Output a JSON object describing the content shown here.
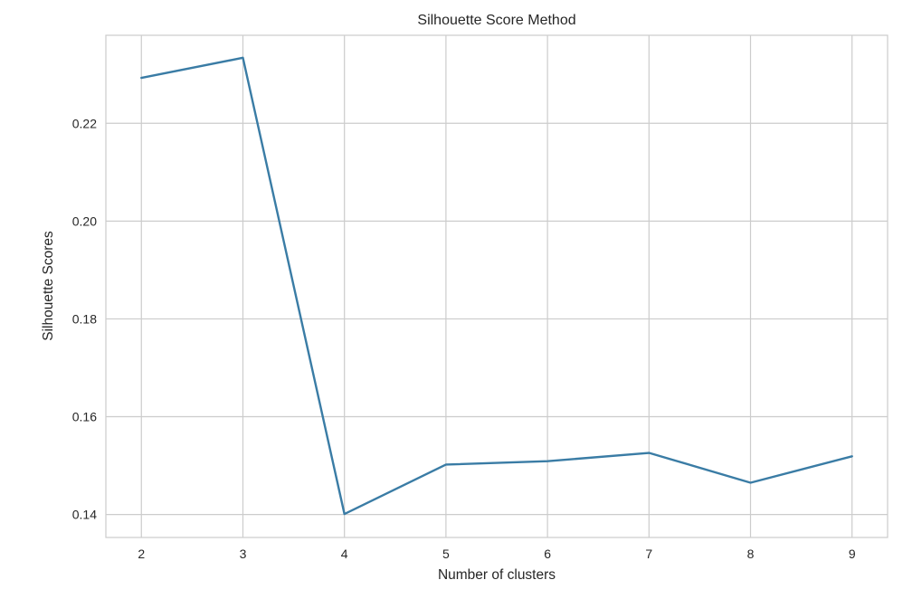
{
  "chart_data": {
    "type": "line",
    "title": "Silhouette Score Method",
    "xlabel": "Number of clusters",
    "ylabel": "Silhouette Scores",
    "x": [
      2,
      3,
      4,
      5,
      6,
      7,
      8,
      9
    ],
    "series": [
      {
        "values": [
          0.2293,
          0.2334,
          0.1401,
          0.1502,
          0.1509,
          0.1526,
          0.1465,
          0.1519
        ],
        "color": "#3a7ca5"
      }
    ],
    "xticks": [
      2,
      3,
      4,
      5,
      6,
      7,
      8,
      9
    ],
    "xtick_labels": [
      "2",
      "3",
      "4",
      "5",
      "6",
      "7",
      "8",
      "9"
    ],
    "yticks": [
      0.14,
      0.16,
      0.18,
      0.2,
      0.22
    ],
    "ytick_labels": [
      "0.14",
      "0.16",
      "0.18",
      "0.20",
      "0.22"
    ],
    "xlim": [
      1.65,
      9.35
    ],
    "ylim": [
      0.1353,
      0.238
    ],
    "grid": true,
    "style": {
      "background": "#ffffff",
      "grid_color": "#cccccc",
      "text_color": "#262626"
    }
  }
}
